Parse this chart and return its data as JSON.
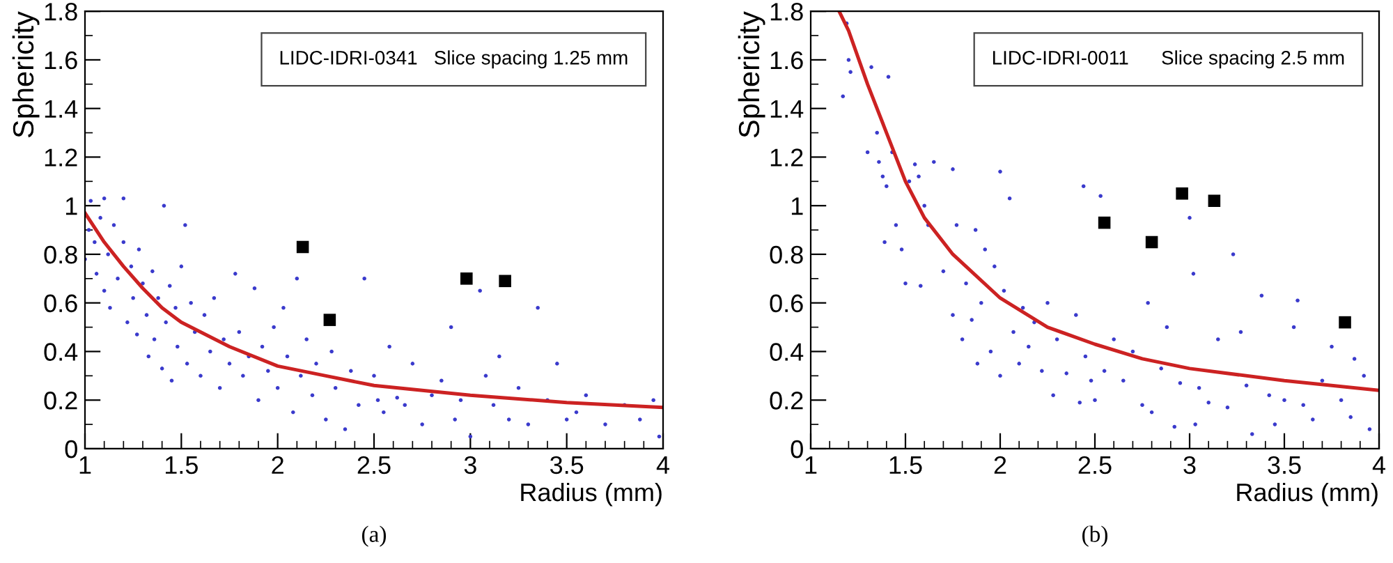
{
  "chart_data": [
    {
      "type": "scatter",
      "xlabel": "Radius (mm)",
      "ylabel": "Sphericity",
      "xlim": [
        1,
        4
      ],
      "ylim": [
        0,
        1.8
      ],
      "xticks": [
        1,
        1.5,
        2,
        2.5,
        3,
        3.5,
        4
      ],
      "yticks": [
        0,
        0.2,
        0.4,
        0.6,
        0.8,
        1,
        1.2,
        1.4,
        1.6,
        1.8
      ],
      "grid": false,
      "legend": false,
      "annotations": [
        "LIDC-IDRI-0341   Slice spacing 1.25 mm",
        "(a)"
      ],
      "series": [
        {
          "type": "scatter",
          "marker": "circle",
          "color": "#3a3acc",
          "x": [
            1.0,
            1.02,
            1.03,
            1.05,
            1.06,
            1.08,
            1.1,
            1.1,
            1.12,
            1.13,
            1.15,
            1.17,
            1.2,
            1.2,
            1.22,
            1.24,
            1.25,
            1.27,
            1.28,
            1.3,
            1.32,
            1.33,
            1.35,
            1.36,
            1.38,
            1.4,
            1.41,
            1.42,
            1.44,
            1.45,
            1.47,
            1.48,
            1.5,
            1.52,
            1.53,
            1.55,
            1.57,
            1.6,
            1.62,
            1.65,
            1.67,
            1.7,
            1.72,
            1.75,
            1.78,
            1.8,
            1.82,
            1.85,
            1.88,
            1.9,
            1.92,
            1.95,
            1.98,
            2.0,
            2.03,
            2.05,
            2.08,
            2.1,
            2.12,
            2.15,
            2.18,
            2.2,
            2.25,
            2.28,
            2.3,
            2.35,
            2.38,
            2.42,
            2.45,
            2.5,
            2.52,
            2.55,
            2.58,
            2.62,
            2.66,
            2.7,
            2.75,
            2.8,
            2.85,
            2.9,
            2.92,
            2.95,
            3.0,
            3.05,
            3.08,
            3.12,
            3.15,
            3.2,
            3.25,
            3.3,
            3.35,
            3.4,
            3.45,
            3.5,
            3.55,
            3.6,
            3.7,
            3.8,
            3.88,
            3.95,
            3.98
          ],
          "values": [
            0.78,
            0.9,
            1.02,
            0.85,
            0.72,
            0.95,
            1.03,
            0.65,
            0.8,
            0.58,
            0.92,
            0.7,
            1.03,
            0.85,
            0.52,
            0.75,
            0.62,
            0.47,
            0.82,
            0.68,
            0.55,
            0.38,
            0.73,
            0.45,
            0.62,
            0.33,
            1.0,
            0.52,
            0.67,
            0.28,
            0.58,
            0.42,
            0.75,
            0.92,
            0.35,
            0.6,
            0.48,
            0.3,
            0.55,
            0.4,
            0.62,
            0.25,
            0.45,
            0.35,
            0.72,
            0.48,
            0.3,
            0.38,
            0.66,
            0.2,
            0.42,
            0.32,
            0.5,
            0.25,
            0.58,
            0.38,
            0.15,
            0.7,
            0.3,
            0.45,
            0.22,
            0.35,
            0.12,
            0.4,
            0.25,
            0.08,
            0.32,
            0.18,
            0.7,
            0.3,
            0.2,
            0.15,
            0.42,
            0.21,
            0.18,
            0.35,
            0.1,
            0.22,
            0.28,
            0.5,
            0.12,
            0.2,
            0.05,
            0.65,
            0.3,
            0.18,
            0.38,
            0.12,
            0.25,
            0.1,
            0.58,
            0.2,
            0.35,
            0.12,
            0.15,
            0.22,
            0.1,
            0.18,
            0.12,
            0.2,
            0.05
          ]
        },
        {
          "type": "scatter",
          "marker": "square",
          "color": "#000000",
          "x": [
            2.13,
            2.27,
            2.98,
            3.18
          ],
          "values": [
            0.83,
            0.53,
            0.7,
            0.69
          ]
        },
        {
          "type": "line",
          "marker": "none",
          "color": "#cc2222",
          "x": [
            1.0,
            1.1,
            1.2,
            1.3,
            1.4,
            1.5,
            1.75,
            2.0,
            2.25,
            2.5,
            3.0,
            3.5,
            4.0
          ],
          "values": [
            0.97,
            0.85,
            0.75,
            0.66,
            0.58,
            0.52,
            0.42,
            0.34,
            0.3,
            0.26,
            0.22,
            0.19,
            0.17
          ]
        }
      ]
    },
    {
      "type": "scatter",
      "xlabel": "Radius (mm)",
      "ylabel": "Sphericity",
      "xlim": [
        1,
        4
      ],
      "ylim": [
        0,
        1.8
      ],
      "xticks": [
        1,
        1.5,
        2,
        2.5,
        3,
        3.5,
        4
      ],
      "yticks": [
        0,
        0.2,
        0.4,
        0.6,
        0.8,
        1,
        1.2,
        1.4,
        1.6,
        1.8
      ],
      "grid": false,
      "legend": false,
      "annotations": [
        "LIDC-IDRI-0011      Slice spacing 2.5 mm",
        "(b)"
      ],
      "series": [
        {
          "type": "scatter",
          "marker": "circle",
          "color": "#3a3acc",
          "x": [
            1.17,
            1.19,
            1.2,
            1.21,
            1.3,
            1.32,
            1.35,
            1.36,
            1.38,
            1.39,
            1.4,
            1.41,
            1.43,
            1.45,
            1.48,
            1.5,
            1.52,
            1.55,
            1.57,
            1.58,
            1.6,
            1.62,
            1.65,
            1.7,
            1.75,
            1.75,
            1.77,
            1.8,
            1.82,
            1.85,
            1.87,
            1.88,
            1.9,
            1.92,
            1.95,
            1.97,
            2.0,
            2.0,
            2.02,
            2.05,
            2.07,
            2.1,
            2.12,
            2.15,
            2.18,
            2.22,
            2.25,
            2.28,
            2.3,
            2.35,
            2.4,
            2.42,
            2.44,
            2.45,
            2.48,
            2.5,
            2.53,
            2.55,
            2.6,
            2.65,
            2.7,
            2.75,
            2.78,
            2.8,
            2.85,
            2.88,
            2.92,
            2.95,
            3.0,
            3.02,
            3.03,
            3.05,
            3.1,
            3.15,
            3.2,
            3.23,
            3.27,
            3.3,
            3.33,
            3.38,
            3.42,
            3.45,
            3.5,
            3.55,
            3.57,
            3.6,
            3.65,
            3.7,
            3.75,
            3.8,
            3.85,
            3.87,
            3.92,
            3.95
          ],
          "values": [
            1.45,
            1.75,
            1.6,
            1.55,
            1.22,
            1.57,
            1.3,
            1.18,
            1.12,
            0.85,
            1.08,
            1.53,
            1.22,
            0.92,
            0.82,
            0.68,
            1.1,
            1.17,
            1.12,
            0.67,
            1.0,
            0.92,
            1.18,
            0.73,
            0.55,
            1.15,
            0.92,
            0.45,
            0.68,
            0.53,
            0.9,
            0.35,
            0.6,
            0.82,
            0.4,
            0.75,
            0.3,
            1.14,
            0.65,
            1.03,
            0.48,
            0.35,
            0.58,
            0.42,
            0.52,
            0.32,
            0.6,
            0.22,
            0.45,
            0.31,
            0.55,
            0.19,
            1.08,
            0.38,
            0.28,
            0.2,
            1.04,
            0.32,
            0.45,
            0.28,
            0.4,
            0.18,
            0.6,
            0.15,
            0.33,
            0.5,
            0.09,
            0.27,
            0.95,
            0.72,
            0.1,
            0.25,
            0.19,
            0.45,
            0.17,
            0.8,
            0.48,
            0.26,
            0.06,
            0.63,
            0.22,
            0.1,
            0.2,
            0.5,
            0.61,
            0.18,
            0.12,
            0.28,
            0.42,
            0.2,
            0.13,
            0.37,
            0.3,
            0.08
          ]
        },
        {
          "type": "scatter",
          "marker": "square",
          "color": "#000000",
          "x": [
            2.55,
            2.8,
            2.96,
            3.13,
            3.82
          ],
          "values": [
            0.93,
            0.85,
            1.05,
            1.02,
            0.52
          ]
        },
        {
          "type": "line",
          "marker": "none",
          "color": "#cc2222",
          "x": [
            1.15,
            1.2,
            1.3,
            1.4,
            1.5,
            1.6,
            1.75,
            2.0,
            2.25,
            2.5,
            2.75,
            3.0,
            3.5,
            4.0
          ],
          "values": [
            1.8,
            1.72,
            1.5,
            1.3,
            1.1,
            0.95,
            0.8,
            0.62,
            0.5,
            0.43,
            0.37,
            0.33,
            0.28,
            0.24
          ]
        }
      ]
    }
  ]
}
